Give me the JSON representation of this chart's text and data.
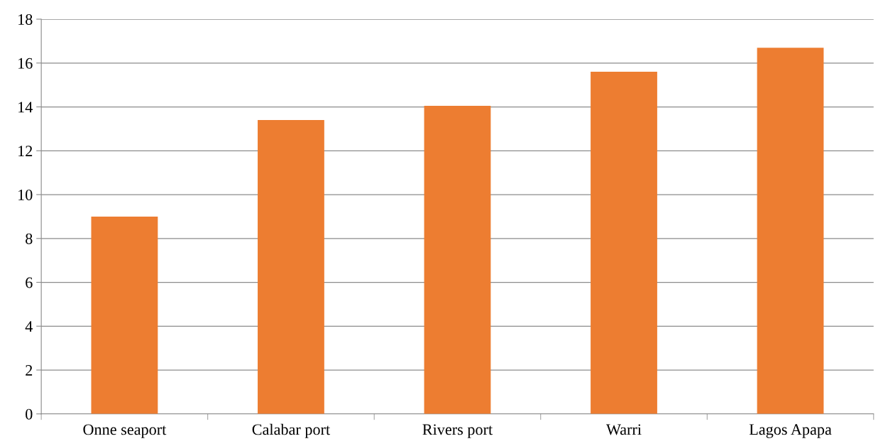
{
  "chart_data": {
    "type": "bar",
    "categories": [
      "Onne seaport",
      "Calabar port",
      "Rivers port",
      "Warri",
      "Lagos Apapa"
    ],
    "values": [
      9.0,
      13.4,
      14.05,
      15.6,
      16.7
    ],
    "color": "#ed7d31",
    "ylim": [
      0,
      18
    ],
    "yticks": [
      0,
      2,
      4,
      6,
      8,
      10,
      12,
      14,
      16,
      18
    ],
    "grid": "y"
  }
}
